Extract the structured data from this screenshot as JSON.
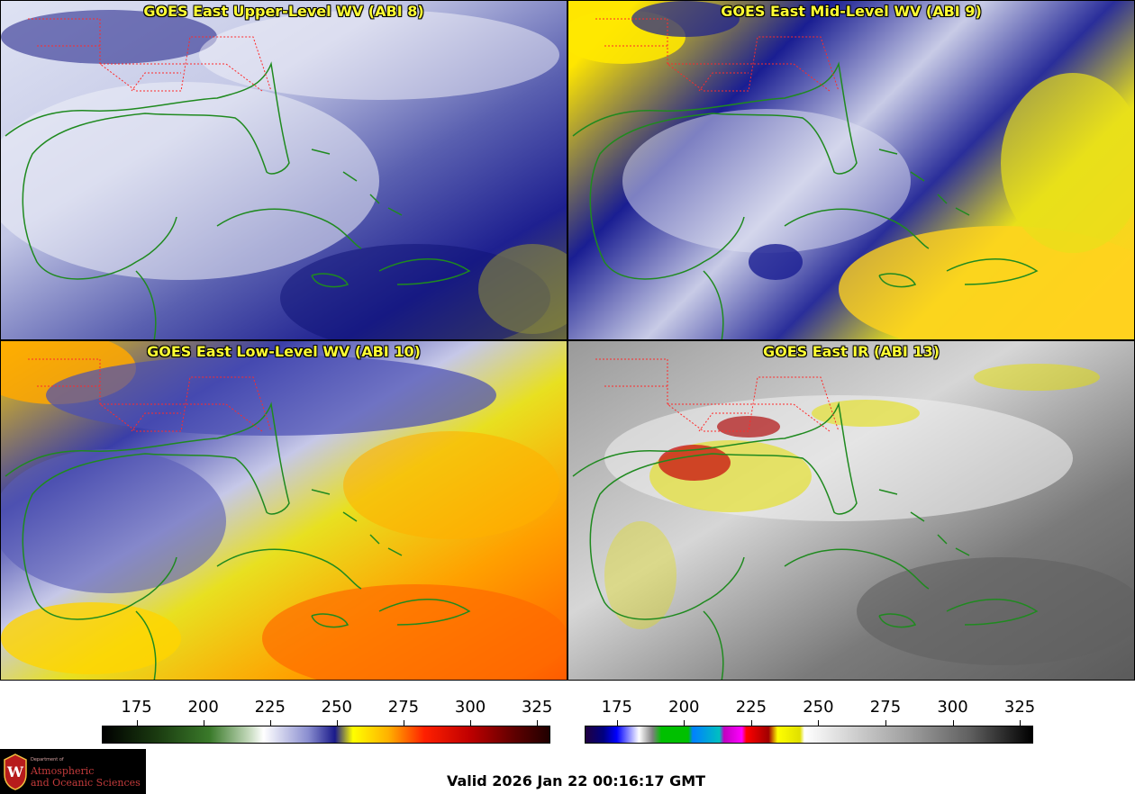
{
  "panels": [
    {
      "title": "GOES East Upper-Level WV (ABI 8)",
      "colormap": "water-vapor",
      "position": "top-left"
    },
    {
      "title": "GOES East Mid-Level WV (ABI 9)",
      "colormap": "water-vapor",
      "position": "top-right"
    },
    {
      "title": "GOES East Low-Level WV (ABI 10)",
      "colormap": "water-vapor",
      "position": "bottom-left"
    },
    {
      "title": "GOES East IR (ABI 13)",
      "colormap": "infrared",
      "position": "bottom-right"
    }
  ],
  "colorbars": [
    {
      "name": "water-vapor",
      "ticks": [
        "175",
        "200",
        "225",
        "250",
        "275",
        "300",
        "325"
      ],
      "tick_values": [
        175,
        200,
        225,
        250,
        275,
        300,
        325
      ],
      "range": [
        162,
        330
      ]
    },
    {
      "name": "infrared",
      "ticks": [
        "175",
        "200",
        "225",
        "250",
        "275",
        "300",
        "325"
      ],
      "tick_values": [
        175,
        200,
        225,
        250,
        275,
        300,
        325
      ],
      "range": [
        163,
        330
      ]
    }
  ],
  "logo": {
    "dept": "Department of",
    "line1": "Atmospheric",
    "line2": "and Oceanic Sciences",
    "seal_letter": "W"
  },
  "valid_time": "Valid 2026 Jan 22 00:16:17 GMT",
  "colors": {
    "title_text": "#ffff33",
    "coastline": "#1f8a1f",
    "state_borders": "#ff2a2a",
    "logo_text": "#c33b3b"
  }
}
